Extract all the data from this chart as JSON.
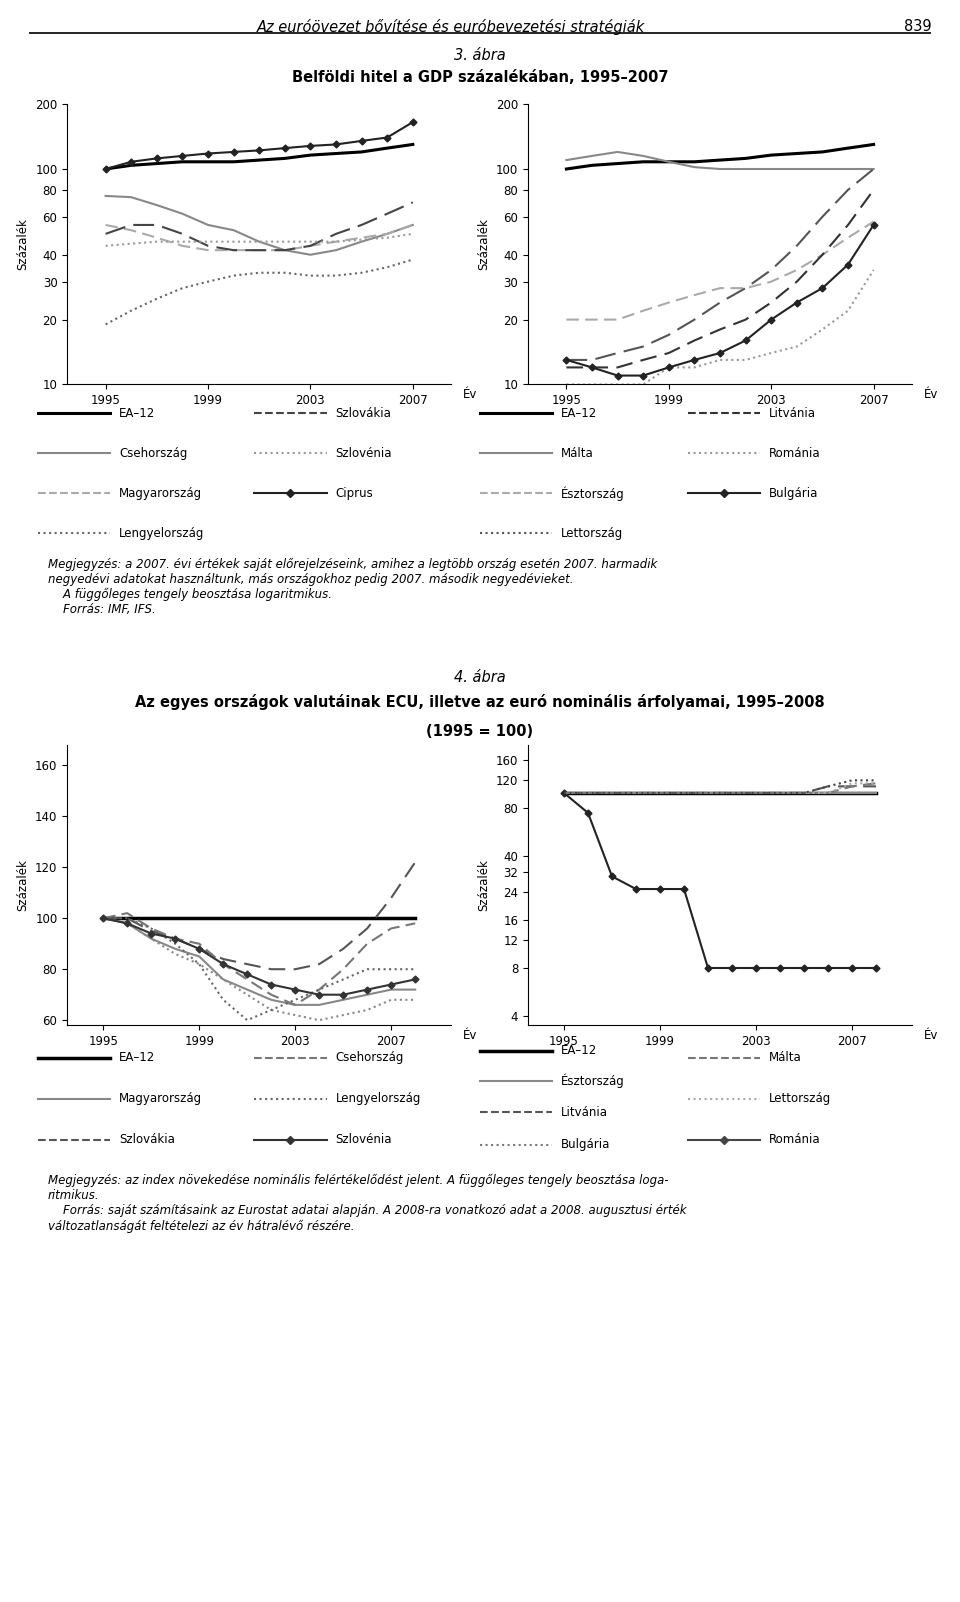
{
  "page_header": "Az euróövezet bővítése és euróbevezetési stratégiák",
  "page_number": "839",
  "fig3_title_line1": "3. ábra",
  "fig3_title_line2": "Belföldi hitel a GDP százalékában, 1995–2007",
  "fig4_title_line1": "4. ábra",
  "fig4_title_line2": "Az egyes országok valutáinak ECU, illetve az euró nominális árfolyamai, 1995–2008",
  "fig4_title_line3": "(1995 = 100)",
  "ylabel": "Százalék",
  "xlabel": "Év",
  "years3": [
    1995,
    1996,
    1997,
    1998,
    1999,
    2000,
    2001,
    2002,
    2003,
    2004,
    2005,
    2006,
    2007
  ],
  "years4": [
    1995,
    1996,
    1997,
    1998,
    1999,
    2000,
    2001,
    2002,
    2003,
    2004,
    2005,
    2006,
    2007,
    2008
  ],
  "fig3_left": {
    "EA12": [
      100,
      104,
      106,
      108,
      108,
      108,
      110,
      112,
      116,
      118,
      120,
      125,
      130
    ],
    "Csehorszag": [
      75,
      74,
      68,
      62,
      55,
      52,
      46,
      42,
      40,
      42,
      46,
      50,
      55
    ],
    "Magyarorszag": [
      55,
      52,
      48,
      44,
      42,
      42,
      42,
      42,
      44,
      46,
      48,
      50,
      55
    ],
    "Lengyelorszag": [
      19,
      22,
      25,
      28,
      30,
      32,
      33,
      33,
      32,
      32,
      33,
      35,
      38
    ],
    "Szlovakia": [
      50,
      55,
      55,
      50,
      44,
      42,
      42,
      42,
      44,
      50,
      55,
      62,
      70
    ],
    "Szlovenia": [
      44,
      45,
      46,
      46,
      46,
      46,
      46,
      46,
      46,
      46,
      47,
      48,
      50
    ],
    "Ciprus": [
      100,
      108,
      112,
      115,
      118,
      120,
      122,
      125,
      128,
      130,
      135,
      140,
      165
    ]
  },
  "fig3_right": {
    "EA12": [
      100,
      104,
      106,
      108,
      108,
      108,
      110,
      112,
      116,
      118,
      120,
      125,
      130
    ],
    "Malta": [
      110,
      115,
      120,
      115,
      108,
      102,
      100,
      100,
      100,
      100,
      100,
      100,
      100
    ],
    "Esztorszag": [
      20,
      20,
      20,
      22,
      24,
      26,
      28,
      28,
      30,
      34,
      40,
      48,
      57
    ],
    "Lettorszag": [
      13,
      13,
      14,
      15,
      17,
      20,
      24,
      28,
      34,
      44,
      60,
      80,
      100
    ],
    "Litvania": [
      12,
      12,
      12,
      13,
      14,
      16,
      18,
      20,
      24,
      30,
      40,
      55,
      80
    ],
    "Romania": [
      10,
      10,
      10,
      10,
      12,
      12,
      13,
      13,
      14,
      15,
      18,
      22,
      34
    ],
    "Bulgaria": [
      13,
      12,
      11,
      11,
      12,
      13,
      14,
      16,
      20,
      24,
      28,
      36,
      55
    ]
  },
  "fig4_left": {
    "EA12": [
      100,
      100,
      100,
      100,
      100,
      100,
      100,
      100,
      100,
      100,
      100,
      100,
      100,
      100
    ],
    "Magyarorszag": [
      100,
      98,
      92,
      88,
      85,
      76,
      72,
      68,
      66,
      66,
      68,
      70,
      72,
      72
    ],
    "Szlovakia": [
      100,
      100,
      95,
      92,
      88,
      84,
      82,
      80,
      80,
      82,
      88,
      96,
      108,
      122
    ],
    "Ciprus": [
      100,
      98,
      92,
      86,
      82,
      76,
      70,
      64,
      62,
      60,
      62,
      64,
      68,
      68
    ],
    "Csehorszag": [
      100,
      102,
      96,
      92,
      90,
      82,
      76,
      70,
      66,
      72,
      80,
      90,
      96,
      98
    ],
    "Lengyelorszag": [
      100,
      100,
      96,
      90,
      82,
      68,
      60,
      64,
      68,
      72,
      76,
      80,
      80,
      80
    ],
    "Szlovenia": [
      100,
      98,
      94,
      92,
      88,
      82,
      78,
      74,
      72,
      70,
      70,
      72,
      74,
      76
    ]
  },
  "fig4_right": {
    "EA12": [
      100,
      100,
      100,
      100,
      100,
      100,
      100,
      100,
      100,
      100,
      100,
      100,
      100,
      100
    ],
    "Esztorszag": [
      100,
      100,
      100,
      100,
      100,
      100,
      100,
      100,
      100,
      100,
      100,
      100,
      100,
      100
    ],
    "Litvania": [
      100,
      100,
      100,
      100,
      100,
      100,
      100,
      100,
      100,
      100,
      100,
      110,
      110,
      110
    ],
    "Bulgaria": [
      100,
      75,
      30,
      25,
      25,
      25,
      8,
      8,
      8,
      8,
      8,
      8,
      8,
      8
    ],
    "Malta": [
      100,
      100,
      100,
      100,
      100,
      100,
      100,
      100,
      100,
      100,
      100,
      100,
      110,
      115
    ],
    "Lettorszag": [
      100,
      100,
      100,
      100,
      100,
      100,
      100,
      100,
      100,
      100,
      100,
      100,
      115,
      115
    ],
    "Romania": [
      100,
      100,
      100,
      100,
      100,
      100,
      100,
      100,
      100,
      100,
      100,
      110,
      120,
      120
    ]
  },
  "note3": "Megjegyzés: a 2007. évi értékek saját előrejelzéseink, amihez a legtöbb ország esetén 2007. harmadik\nnegyedévi adatokat használtunk, más országokhoz pedig 2007. második negyedévieket.\n    A függőleges tengely beosztása logaritmikus.\n    Forrás: IMF, IFS.",
  "note4": "Megjegyzés: az index növekedése nominális felértékelődést jelent. A függőleges tengely beosztása loga-\nritmikus.\n    Forrás: saját számításaink az Eurostat adatai alapján. A 2008-ra vonatkozó adat a 2008. augusztusi érték\nváltozatlanságát feltételezi az év hátralévő részére."
}
